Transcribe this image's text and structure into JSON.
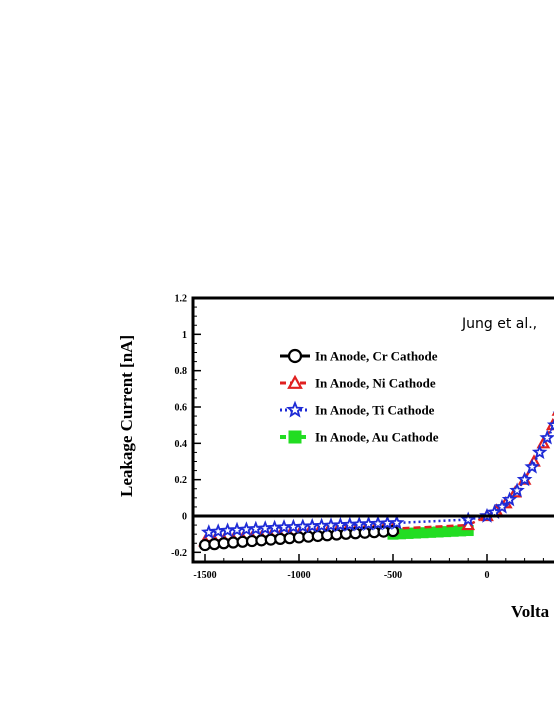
{
  "chart_data": {
    "type": "line",
    "title": "",
    "annotation": "Jung et al.,",
    "xlabel": "Volta",
    "ylabel": "Leakage Current [nA]",
    "xlim": [
      -1550,
      400
    ],
    "ylim": [
      -0.25,
      1.2
    ],
    "x_ticks": [
      -1500,
      -1000,
      -500,
      0
    ],
    "x_tick_labels": [
      "-1500",
      "-1000",
      "-500",
      "0"
    ],
    "y_ticks": [
      1.2,
      1,
      0.8,
      0.6,
      0.4,
      0.2,
      0,
      -0.2
    ],
    "y_tick_labels": [
      "1.2",
      "1",
      "0.8",
      "0.6",
      "0.4",
      "0.2",
      "0",
      "-0.2"
    ],
    "zero_line": true,
    "legend_position": "top-left",
    "series": [
      {
        "name": "In Anode, Cr Cathode",
        "color": "#000000",
        "marker": "circle",
        "line_style": "solid",
        "x": [
          -1500,
          -1450,
          -1400,
          -1350,
          -1300,
          -1250,
          -1200,
          -1150,
          -1100,
          -1050,
          -1000,
          -950,
          -900,
          -850,
          -800,
          -750,
          -700,
          -650,
          -600,
          -550,
          -500
        ],
        "y": [
          -0.16,
          -0.155,
          -0.15,
          -0.146,
          -0.142,
          -0.138,
          -0.134,
          -0.13,
          -0.126,
          -0.122,
          -0.118,
          -0.114,
          -0.11,
          -0.106,
          -0.102,
          -0.098,
          -0.095,
          -0.092,
          -0.089,
          -0.086,
          -0.083
        ]
      },
      {
        "name": "In Anode, Ni Cathode",
        "color": "#e02020",
        "marker": "triangle",
        "line_style": "dashed",
        "x": [
          -1500,
          -1450,
          -1400,
          -1350,
          -1300,
          -1250,
          -1200,
          -1150,
          -1100,
          -1050,
          -1000,
          -950,
          -900,
          -850,
          -800,
          -750,
          -700,
          -650,
          -600,
          -550,
          -500,
          -100,
          0,
          50,
          100,
          150,
          200,
          250,
          300,
          350,
          380
        ],
        "y": [
          -0.14,
          -0.136,
          -0.132,
          -0.128,
          -0.124,
          -0.12,
          -0.116,
          -0.112,
          -0.108,
          -0.104,
          -0.1,
          -0.097,
          -0.094,
          -0.091,
          -0.088,
          -0.085,
          -0.082,
          -0.079,
          -0.076,
          -0.073,
          -0.07,
          -0.05,
          0.0,
          0.03,
          0.07,
          0.13,
          0.2,
          0.3,
          0.4,
          0.5,
          0.58
        ]
      },
      {
        "name": "In Anode, Ti Cathode",
        "color": "#1e2bd6",
        "marker": "star",
        "line_style": "dotted",
        "x": [
          -1480,
          -1430,
          -1380,
          -1330,
          -1280,
          -1230,
          -1180,
          -1130,
          -1080,
          -1030,
          -980,
          -930,
          -880,
          -830,
          -780,
          -730,
          -680,
          -630,
          -580,
          -530,
          -480,
          -100,
          0,
          40,
          80,
          120,
          160,
          200,
          240,
          280,
          320,
          360,
          390
        ],
        "y": [
          -0.09,
          -0.085,
          -0.08,
          -0.077,
          -0.074,
          -0.071,
          -0.068,
          -0.065,
          -0.062,
          -0.06,
          -0.058,
          -0.056,
          -0.054,
          -0.052,
          -0.05,
          -0.048,
          -0.046,
          -0.044,
          -0.042,
          -0.04,
          -0.038,
          -0.02,
          0.0,
          0.02,
          0.05,
          0.09,
          0.14,
          0.2,
          0.27,
          0.35,
          0.43,
          0.5,
          0.56
        ]
      },
      {
        "name": "In Anode, Au Cathode",
        "color": "#22dd22",
        "marker": "square",
        "line_style": "dashed",
        "x": [
          -500,
          -460,
          -420,
          -380,
          -340,
          -300,
          -260,
          -220,
          -180,
          -140,
          -100
        ],
        "y": [
          -0.1,
          -0.098,
          -0.096,
          -0.094,
          -0.092,
          -0.09,
          -0.088,
          -0.086,
          -0.084,
          -0.082,
          -0.08
        ]
      }
    ]
  }
}
